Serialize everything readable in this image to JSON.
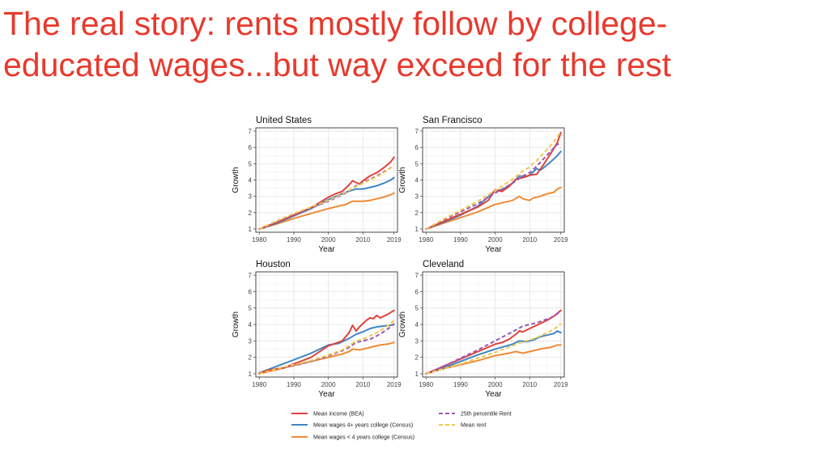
{
  "slide": {
    "title_line1": "The real story: rents mostly follow by college-",
    "title_line2": "educated wages...but way exceed for the rest"
  },
  "series_styles": {
    "income": {
      "color": "#e0413a",
      "dashed": false
    },
    "wages_college": {
      "color": "#3f86c6",
      "dashed": false
    },
    "wages_noncollege": {
      "color": "#ef8a37",
      "dashed": false
    },
    "rent_p25": {
      "color": "#9b59b6",
      "dashed": true
    },
    "rent_mean": {
      "color": "#f2c84b",
      "dashed": true
    }
  },
  "legend": [
    {
      "key": "income",
      "label": "Mean income (BEA)"
    },
    {
      "key": "rent_p25",
      "label": "25th percentile Rent"
    },
    {
      "key": "wages_college",
      "label": "Mean wages 4+ years college (Census)"
    },
    {
      "key": "rent_mean",
      "label": "Mean rent"
    },
    {
      "key": "wages_noncollege",
      "label": "Mean wages < 4 years college (Census)"
    }
  ],
  "chart_data": [
    {
      "type": "line",
      "title": "United States",
      "xlabel": "Year",
      "ylabel": "Growth",
      "xlim": [
        1979,
        2020
      ],
      "ylim": [
        0.8,
        7.2
      ],
      "xticks": [
        1980,
        1990,
        2000,
        2010,
        2019
      ],
      "yticks": [
        1,
        2,
        3,
        4,
        5,
        6,
        7
      ],
      "grid": true,
      "series": [
        {
          "key": "income",
          "x": [
            1980,
            1985,
            1990,
            1995,
            2000,
            2002,
            2004,
            2006,
            2007,
            2009,
            2010,
            2012,
            2014,
            2016,
            2018,
            2019
          ],
          "y": [
            1.0,
            1.4,
            1.85,
            2.3,
            2.95,
            3.15,
            3.3,
            3.7,
            3.95,
            3.75,
            3.95,
            4.25,
            4.45,
            4.75,
            5.1,
            5.4
          ]
        },
        {
          "key": "wages_college",
          "x": [
            1980,
            1985,
            1990,
            1995,
            2000,
            2005,
            2008,
            2010,
            2012,
            2014,
            2016,
            2018,
            2019
          ],
          "y": [
            1.0,
            1.35,
            1.8,
            2.25,
            2.8,
            3.25,
            3.45,
            3.45,
            3.55,
            3.65,
            3.8,
            4.0,
            4.15
          ]
        },
        {
          "key": "wages_noncollege",
          "x": [
            1980,
            1985,
            1990,
            1995,
            2000,
            2005,
            2007,
            2010,
            2012,
            2014,
            2016,
            2018,
            2019
          ],
          "y": [
            1.0,
            1.3,
            1.65,
            1.95,
            2.25,
            2.5,
            2.7,
            2.7,
            2.75,
            2.85,
            2.95,
            3.1,
            3.2
          ]
        },
        {
          "key": "rent_p25",
          "x": [
            1980,
            1985,
            1990,
            1995,
            2000,
            2005,
            2008,
            2010,
            2012,
            2014,
            2016,
            2018,
            2019
          ],
          "y": [
            1.0,
            1.45,
            1.9,
            2.3,
            2.7,
            3.2,
            3.65,
            3.85,
            4.05,
            4.25,
            4.5,
            4.75,
            4.85
          ]
        },
        {
          "key": "rent_mean",
          "x": [
            1980,
            1985,
            1990,
            1995,
            2000,
            2005,
            2008,
            2010,
            2012,
            2014,
            2016,
            2018,
            2019
          ],
          "y": [
            1.0,
            1.5,
            1.95,
            2.35,
            2.75,
            3.25,
            3.6,
            3.8,
            4.0,
            4.2,
            4.45,
            4.75,
            4.9
          ]
        }
      ]
    },
    {
      "type": "line",
      "title": "San Francisco",
      "xlabel": "Year",
      "ylabel": "Growth",
      "xlim": [
        1979,
        2020
      ],
      "ylim": [
        0.8,
        7.2
      ],
      "xticks": [
        1980,
        1990,
        2000,
        2010,
        2019
      ],
      "yticks": [
        1,
        2,
        3,
        4,
        5,
        6,
        7
      ],
      "grid": true,
      "series": [
        {
          "key": "income",
          "x": [
            1980,
            1985,
            1990,
            1995,
            1998,
            2000,
            2002,
            2004,
            2006,
            2008,
            2010,
            2012,
            2014,
            2016,
            2018,
            2019
          ],
          "y": [
            1.0,
            1.45,
            1.9,
            2.35,
            2.75,
            3.4,
            3.3,
            3.6,
            4.05,
            4.15,
            4.3,
            4.35,
            4.95,
            5.6,
            6.3,
            6.9
          ]
        },
        {
          "key": "wages_college",
          "x": [
            1980,
            1985,
            1990,
            1995,
            2000,
            2002,
            2005,
            2007,
            2009,
            2010,
            2012,
            2013,
            2014,
            2016,
            2018,
            2019
          ],
          "y": [
            1.0,
            1.4,
            1.85,
            2.4,
            3.35,
            3.4,
            3.8,
            4.25,
            4.2,
            4.3,
            4.7,
            4.6,
            4.75,
            5.1,
            5.5,
            5.75
          ]
        },
        {
          "key": "wages_noncollege",
          "x": [
            1980,
            1985,
            1990,
            1995,
            2000,
            2005,
            2007,
            2008,
            2010,
            2011,
            2013,
            2015,
            2017,
            2018,
            2019
          ],
          "y": [
            1.0,
            1.35,
            1.7,
            2.05,
            2.5,
            2.75,
            3.0,
            2.85,
            2.75,
            2.9,
            3.0,
            3.15,
            3.25,
            3.45,
            3.55
          ]
        },
        {
          "key": "rent_p25",
          "x": [
            1980,
            1985,
            1990,
            1995,
            2000,
            2005,
            2008,
            2010,
            2012,
            2014,
            2016,
            2018,
            2019
          ],
          "y": [
            1.0,
            1.55,
            2.05,
            2.55,
            3.2,
            3.8,
            4.25,
            4.45,
            4.85,
            5.3,
            5.75,
            6.2,
            6.2
          ]
        },
        {
          "key": "rent_mean",
          "x": [
            1980,
            1985,
            1990,
            1995,
            2000,
            2005,
            2008,
            2010,
            2012,
            2014,
            2016,
            2018,
            2019
          ],
          "y": [
            1.0,
            1.6,
            2.15,
            2.7,
            3.35,
            4.05,
            4.55,
            4.8,
            5.2,
            5.65,
            6.1,
            6.65,
            6.95
          ]
        }
      ]
    },
    {
      "type": "line",
      "title": "Houston",
      "xlabel": "Year",
      "ylabel": "Growth",
      "xlim": [
        1979,
        2020
      ],
      "ylim": [
        0.8,
        7.2
      ],
      "xticks": [
        1980,
        1990,
        2000,
        2010,
        2019
      ],
      "yticks": [
        1,
        2,
        3,
        4,
        5,
        6,
        7
      ],
      "grid": true,
      "series": [
        {
          "key": "income",
          "x": [
            1980,
            1982,
            1985,
            1987,
            1990,
            1995,
            2000,
            2002,
            2004,
            2006,
            2007,
            2008,
            2009,
            2011,
            2012,
            2013,
            2014,
            2015,
            2017,
            2019
          ],
          "y": [
            1.0,
            1.2,
            1.3,
            1.35,
            1.6,
            2.0,
            2.7,
            2.85,
            3.0,
            3.5,
            3.95,
            3.6,
            3.85,
            4.25,
            4.4,
            4.35,
            4.55,
            4.4,
            4.6,
            4.85
          ]
        },
        {
          "key": "wages_college",
          "x": [
            1980,
            1985,
            1990,
            1995,
            2000,
            2003,
            2006,
            2008,
            2010,
            2012,
            2014,
            2016,
            2018,
            2019
          ],
          "y": [
            1.05,
            1.45,
            1.85,
            2.25,
            2.75,
            2.85,
            3.15,
            3.4,
            3.55,
            3.75,
            3.85,
            3.9,
            3.95,
            4.0
          ]
        },
        {
          "key": "wages_noncollege",
          "x": [
            1980,
            1985,
            1990,
            1995,
            2000,
            2004,
            2006,
            2007,
            2009,
            2011,
            2013,
            2015,
            2017,
            2019
          ],
          "y": [
            1.0,
            1.25,
            1.5,
            1.75,
            2.0,
            2.2,
            2.35,
            2.5,
            2.45,
            2.55,
            2.65,
            2.75,
            2.8,
            2.9
          ]
        },
        {
          "key": "rent_p25",
          "x": [
            1980,
            1985,
            1990,
            1995,
            2000,
            2004,
            2006,
            2008,
            2010,
            2012,
            2014,
            2016,
            2018,
            2019
          ],
          "y": [
            1.0,
            1.3,
            1.5,
            1.75,
            2.1,
            2.4,
            2.6,
            2.9,
            3.0,
            3.1,
            3.3,
            3.55,
            3.85,
            4.05
          ]
        },
        {
          "key": "rent_mean",
          "x": [
            1980,
            1985,
            1990,
            1995,
            2000,
            2004,
            2006,
            2008,
            2010,
            2012,
            2014,
            2016,
            2018,
            2019
          ],
          "y": [
            1.0,
            1.3,
            1.55,
            1.8,
            2.15,
            2.45,
            2.7,
            3.0,
            3.1,
            3.3,
            3.5,
            3.75,
            4.05,
            4.25
          ]
        }
      ]
    },
    {
      "type": "line",
      "title": "Cleveland",
      "xlabel": "Year",
      "ylabel": "Growth",
      "xlim": [
        1979,
        2020
      ],
      "ylim": [
        0.8,
        7.2
      ],
      "xticks": [
        1980,
        1990,
        2000,
        2010,
        2019
      ],
      "yticks": [
        1,
        2,
        3,
        4,
        5,
        6,
        7
      ],
      "grid": true,
      "series": [
        {
          "key": "income",
          "x": [
            1980,
            1985,
            1990,
            1995,
            2000,
            2002,
            2004,
            2006,
            2007,
            2008,
            2009,
            2011,
            2013,
            2015,
            2017,
            2019
          ],
          "y": [
            1.0,
            1.45,
            1.9,
            2.35,
            2.8,
            2.9,
            3.1,
            3.4,
            3.6,
            3.55,
            3.65,
            3.85,
            4.05,
            4.25,
            4.5,
            4.85
          ]
        },
        {
          "key": "wages_college",
          "x": [
            1980,
            1985,
            1990,
            1995,
            2000,
            2005,
            2007,
            2009,
            2011,
            2013,
            2015,
            2017,
            2018,
            2019
          ],
          "y": [
            1.0,
            1.35,
            1.75,
            2.15,
            2.5,
            2.8,
            3.0,
            2.95,
            3.05,
            3.25,
            3.35,
            3.45,
            3.6,
            3.5
          ]
        },
        {
          "key": "wages_noncollege",
          "x": [
            1980,
            1985,
            1990,
            1995,
            2000,
            2004,
            2006,
            2008,
            2010,
            2012,
            2014,
            2016,
            2018,
            2019
          ],
          "y": [
            1.0,
            1.3,
            1.55,
            1.8,
            2.1,
            2.25,
            2.35,
            2.25,
            2.35,
            2.45,
            2.55,
            2.6,
            2.75,
            2.75
          ]
        },
        {
          "key": "rent_p25",
          "x": [
            1980,
            1985,
            1990,
            1995,
            2000,
            2005,
            2008,
            2010,
            2012,
            2014,
            2016,
            2018,
            2019
          ],
          "y": [
            1.0,
            1.45,
            1.95,
            2.45,
            3.0,
            3.55,
            3.9,
            4.0,
            4.1,
            4.25,
            4.4,
            4.65,
            4.8
          ]
        },
        {
          "key": "rent_mean",
          "x": [
            1980,
            1985,
            1990,
            1995,
            2000,
            2005,
            2008,
            2010,
            2012,
            2014,
            2016,
            2018,
            2019
          ],
          "y": [
            1.0,
            1.3,
            1.6,
            1.95,
            2.3,
            2.7,
            2.95,
            3.05,
            3.2,
            3.4,
            3.6,
            3.85,
            4.05
          ]
        }
      ]
    }
  ]
}
